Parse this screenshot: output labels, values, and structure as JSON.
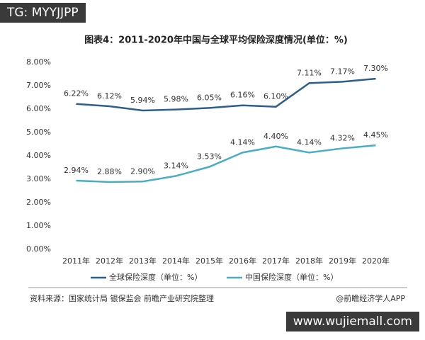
{
  "watermark_top": "TG: MYYJJPP",
  "watermark_bottom": "www.wujiemall.com",
  "source": "资料来源：国家统计局 银保监会 前瞻产业研究院整理",
  "credit": "@前瞻经济学人APP",
  "chart_data": {
    "type": "line",
    "title": "图表4：2011-2020年中国与全球平均保险深度情况(单位：%)",
    "categories": [
      "2011年",
      "2012年",
      "2013年",
      "2014年",
      "2015年",
      "2016年",
      "2017年",
      "2018年",
      "2019年",
      "2020年"
    ],
    "series": [
      {
        "name": "全球保险深度（单位：%）",
        "color": "#2e5f8a",
        "values": [
          6.22,
          6.12,
          5.94,
          5.98,
          6.05,
          6.16,
          6.1,
          7.11,
          7.17,
          7.3
        ],
        "value_labels": [
          "6.22%",
          "6.12%",
          "5.94%",
          "5.98%",
          "6.05%",
          "6.16%",
          "6.10%",
          "7.11%",
          "7.17%",
          "7.30%"
        ]
      },
      {
        "name": "中国保险深度（单位：%）",
        "color": "#4bacc6",
        "values": [
          2.94,
          2.88,
          2.9,
          3.14,
          3.53,
          4.14,
          4.4,
          4.14,
          4.32,
          4.45
        ],
        "value_labels": [
          "2.94%",
          "2.88%",
          "2.90%",
          "3.14%",
          "3.53%",
          "4.14%",
          "4.40%",
          "4.14%",
          "4.32%",
          "4.45%"
        ]
      }
    ],
    "ylim": [
      0,
      8
    ],
    "yticks": [
      {
        "value": 0,
        "label": "0.00%"
      },
      {
        "value": 1,
        "label": "1.00%"
      },
      {
        "value": 2,
        "label": "2.00%"
      },
      {
        "value": 3,
        "label": "3.00%"
      },
      {
        "value": 4,
        "label": "4.00%"
      },
      {
        "value": 5,
        "label": "5.00%"
      },
      {
        "value": 6,
        "label": "6.00%"
      },
      {
        "value": 7,
        "label": "7.00%"
      },
      {
        "value": 8,
        "label": "8.00%"
      }
    ],
    "grid": false
  }
}
